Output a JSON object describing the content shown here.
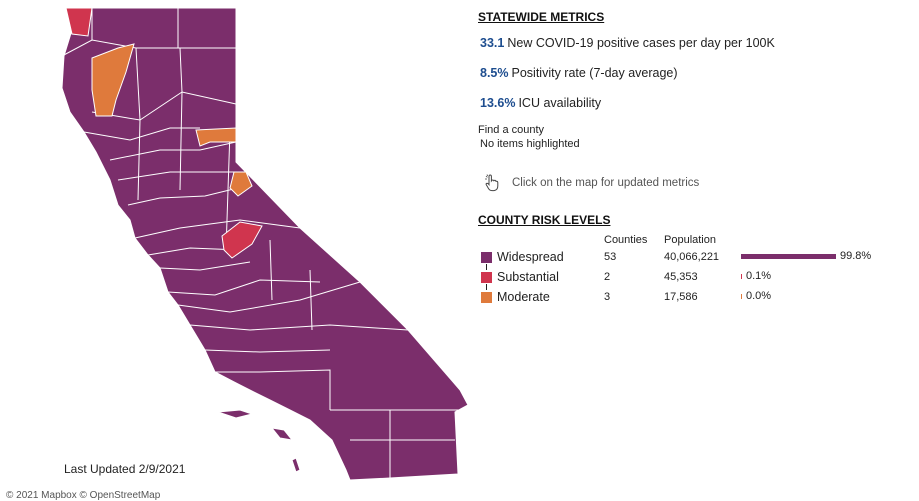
{
  "colors": {
    "widespread": "#7b2e6b",
    "substantial": "#d0354e",
    "moderate": "#df7a3c",
    "metric_value": "#1d4d8f",
    "county_border": "#ffffff"
  },
  "map": {
    "last_updated": "Last Updated 2/9/2021",
    "attribution": "© 2021 Mapbox © OpenStreetMap"
  },
  "metrics": {
    "heading": "STATEWIDE METRICS",
    "items": [
      {
        "value": "33.1",
        "label": "New COVID-19 positive cases per day per 100K"
      },
      {
        "value": "8.5%",
        "label": "Positivity rate (7-day average)"
      },
      {
        "value": "13.6%",
        "label": "ICU availability"
      }
    ]
  },
  "find": {
    "label": "Find a county",
    "value": "No items highlighted"
  },
  "hint": {
    "icon": "hand-pointer-icon",
    "text": "Click on the map for updated metrics"
  },
  "risk": {
    "heading": "COUNTY RISK LEVELS",
    "col_counties": "Counties",
    "col_population": "Population",
    "rows": [
      {
        "label": "Widespread",
        "counties": "53",
        "population": "40,066,221",
        "percent": "99.8%",
        "share": 0.998
      },
      {
        "label": "Substantial",
        "counties": "2",
        "population": "45,353",
        "percent": "0.1%",
        "share": 0.001
      },
      {
        "label": "Moderate",
        "counties": "3",
        "population": "17,586",
        "percent": "0.0%",
        "share": 0.0
      }
    ]
  }
}
